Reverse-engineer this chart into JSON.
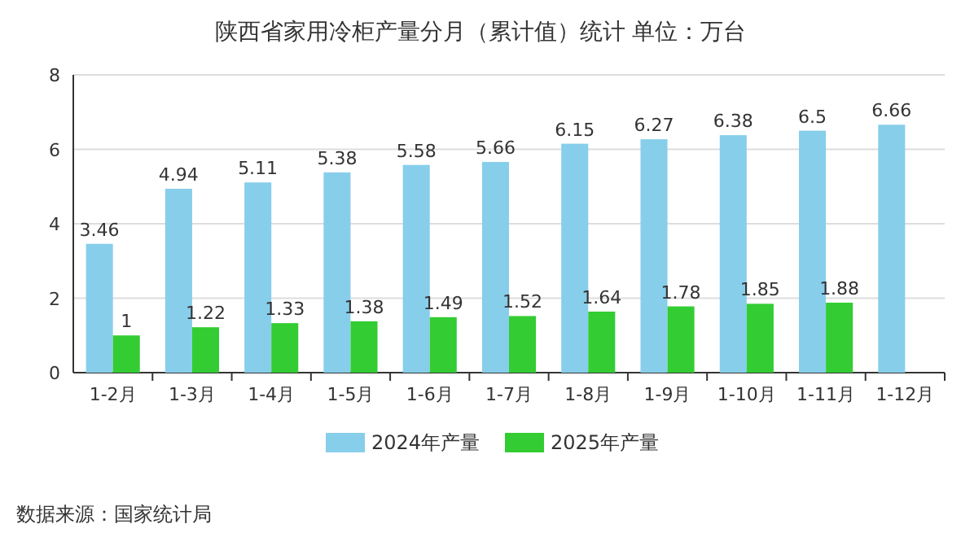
{
  "chart_data": {
    "type": "bar",
    "title": "陕西省家用冷柜产量分月（累计值）统计 单位：万台",
    "categories": [
      "1-2月",
      "1-3月",
      "1-4月",
      "1-5月",
      "1-6月",
      "1-7月",
      "1-8月",
      "1-9月",
      "1-10月",
      "1-11月",
      "1-12月"
    ],
    "series": [
      {
        "name": "2024年产量",
        "color": "#87ceeb",
        "values": [
          3.46,
          4.94,
          5.11,
          5.38,
          5.58,
          5.66,
          6.15,
          6.27,
          6.38,
          6.5,
          6.66
        ]
      },
      {
        "name": "2025年产量",
        "color": "#33cc33",
        "values": [
          1,
          1.22,
          1.33,
          1.38,
          1.49,
          1.52,
          1.64,
          1.78,
          1.85,
          1.88,
          null
        ]
      }
    ],
    "ylim": [
      0,
      8
    ],
    "yticks": [
      0,
      2,
      4,
      6,
      8
    ],
    "grid": "y",
    "legend": "bottom",
    "data_labels": true,
    "annotations": [
      "数据来源：国家统计局"
    ]
  }
}
